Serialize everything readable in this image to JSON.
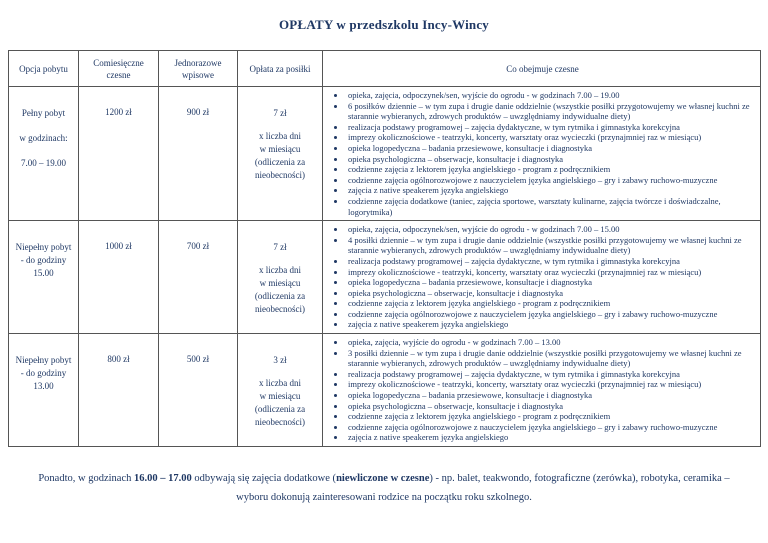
{
  "colors": {
    "text": "#1f3864",
    "border": "#555555",
    "background": "#ffffff"
  },
  "title": "OPŁATY w przedszkolu Incy-Wincy",
  "table": {
    "headers": [
      "Opcja pobytu",
      "Comiesięczne czesne",
      "Jednorazowe wpisowe",
      "Opłata za posiłki",
      "Co obejmuje czesne"
    ],
    "rows": [
      {
        "option_lines": [
          "Pełny pobyt",
          "w godzinach:",
          "7.00 – 19.00"
        ],
        "monthly_fee": "1200 zł",
        "entry_fee": "900 zł",
        "meal_lines": [
          "7 zł",
          "x liczba dni",
          "w miesiącu",
          "(odliczenia za",
          "nieobecności)"
        ],
        "includes": [
          "opieka, zajęcia, odpoczynek/sen, wyjście do ogrodu - w godzinach 7.00 – 19.00",
          "6 posiłków dziennie – w tym zupa i drugie danie oddzielnie (wszystkie posiłki przygotowujemy we własnej kuchni ze starannie wybieranych, zdrowych produktów – uwzględniamy indywidualne diety)",
          "realizacja podstawy programowej – zajęcia dydaktyczne, w tym rytmika i gimnastyka korekcyjna",
          "imprezy okolicznościowe - teatrzyki, koncerty, warsztaty oraz wycieczki (przynajmniej raz w miesiącu)",
          "opieka logopedyczna – badania przesiewowe, konsultacje i diagnostyka",
          "opieka psychologiczna – obserwacje, konsultacje i diagnostyka",
          "codzienne zajęcia z lektorem języka angielskiego - program z podręcznikiem",
          "codzienne zajęcia ogólnorozwojowe z nauczycielem języka angielskiego – gry i zabawy ruchowo-muzyczne",
          "zajęcia z native speakerem języka angielskiego",
          "codzienne zajęcia dodatkowe (taniec, zajęcia sportowe, warsztaty kulinarne, zajęcia twórcze i doświadczalne, logorytmika)"
        ]
      },
      {
        "option_lines": [
          "Niepełny pobyt",
          "- do godziny",
          "15.00"
        ],
        "monthly_fee": "1000 zł",
        "entry_fee": "700 zł",
        "meal_lines": [
          "7 zł",
          "x liczba dni",
          "w miesiącu",
          "(odliczenia za",
          "nieobecności)"
        ],
        "includes": [
          "opieka, zajęcia, odpoczynek/sen, wyjście do ogrodu - w godzinach 7.00 – 15.00",
          "4 posiłki dziennie – w tym zupa i drugie danie oddzielnie (wszystkie posiłki przygotowujemy we własnej kuchni ze starannie wybieranych, zdrowych produktów – uwzględniamy indywidualne diety)",
          "realizacja podstawy programowej – zajęcia dydaktyczne, w tym rytmika i gimnastyka korekcyjna",
          "imprezy okolicznościowe - teatrzyki, koncerty, warsztaty oraz wycieczki (przynajmniej raz w miesiącu)",
          "opieka logopedyczna – badania przesiewowe, konsultacje i diagnostyka",
          "opieka psychologiczna – obserwacje, konsultacje i diagnostyka",
          "codzienne zajęcia z lektorem języka angielskiego - program z podręcznikiem",
          "codzienne zajęcia ogólnorozwojowe z nauczycielem języka angielskiego – gry i zabawy ruchowo-muzyczne",
          "zajęcia z native speakerem języka angielskiego"
        ]
      },
      {
        "option_lines": [
          "Niepełny pobyt",
          "- do godziny",
          "13.00"
        ],
        "monthly_fee": "800 zł",
        "entry_fee": "500 zł",
        "meal_lines": [
          "3 zł",
          "x liczba dni",
          "w miesiącu",
          "(odliczenia za",
          "nieobecności)"
        ],
        "includes": [
          "opieka, zajęcia, wyjście do ogrodu - w godzinach 7.00 – 13.00",
          "3 posiłki dziennie – w tym zupa i drugie danie oddzielnie (wszystkie posiłki przygotowujemy we własnej kuchni ze starannie wybieranych, zdrowych produktów – uwzględniamy indywidualne diety)",
          "realizacja podstawy programowej – zajęcia dydaktyczne, w tym rytmika i gimnastyka korekcyjna",
          "imprezy okolicznościowe - teatrzyki, koncerty, warsztaty oraz wycieczki (przynajmniej raz w miesiącu)",
          "opieka logopedyczna – badania przesiewowe, konsultacje i diagnostyka",
          "opieka psychologiczna – obserwacje, konsultacje i diagnostyka",
          "codzienne zajęcia z lektorem języka angielskiego - program z podręcznikiem",
          "codzienne zajęcia ogólnorozwojowe z nauczycielem języka angielskiego – gry i zabawy ruchowo-muzyczne",
          "zajęcia z native speakerem języka angielskiego"
        ]
      }
    ]
  },
  "footer_segments": [
    {
      "text": "Ponadto, w godzinach ",
      "bold": false
    },
    {
      "text": "16.00 – 17.00",
      "bold": true
    },
    {
      "text": " odbywają się zajęcia dodatkowe (",
      "bold": false
    },
    {
      "text": "niewliczone w czesne",
      "bold": true
    },
    {
      "text": ") - np. balet, teakwondo, fotograficzne (zerówka), robotyka, ceramika – wyboru dokonują zainteresowani rodzice na początku roku szkolnego.",
      "bold": false
    }
  ]
}
